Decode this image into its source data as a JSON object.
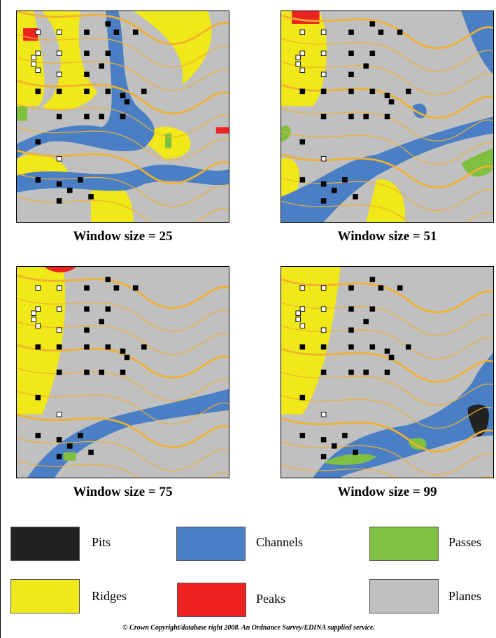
{
  "panels": [
    {
      "caption": "Window size = 25"
    },
    {
      "caption": "Window size = 51"
    },
    {
      "caption": "Window size = 75"
    },
    {
      "caption": "Window size = 99"
    }
  ],
  "legend": [
    {
      "label": "Pits",
      "color": "#222222"
    },
    {
      "label": "Channels",
      "color": "#4a7fc6"
    },
    {
      "label": "Passes",
      "color": "#80c040"
    },
    {
      "label": "Ridges",
      "color": "#f0e818"
    },
    {
      "label": "Peaks",
      "color": "#ee2222"
    },
    {
      "label": "Planes",
      "color": "#c0c0c0"
    }
  ],
  "copyright": "© Crown Copyright/database right 2008.  An Ordnance Survey/EDINA supplied service."
}
